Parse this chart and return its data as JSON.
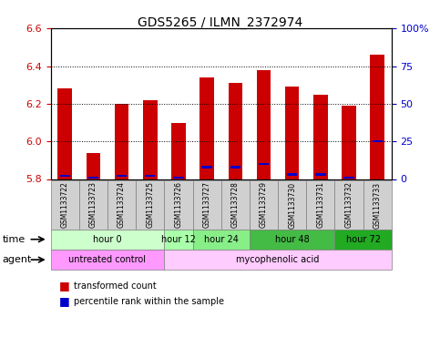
{
  "title": "GDS5265 / ILMN_2372974",
  "samples": [
    "GSM1133722",
    "GSM1133723",
    "GSM1133724",
    "GSM1133725",
    "GSM1133726",
    "GSM1133727",
    "GSM1133728",
    "GSM1133729",
    "GSM1133730",
    "GSM1133731",
    "GSM1133732",
    "GSM1133733"
  ],
  "transformed_count": [
    6.28,
    5.94,
    6.2,
    6.22,
    6.1,
    6.34,
    6.31,
    6.38,
    6.29,
    6.25,
    6.19,
    6.46
  ],
  "percentile_rank": [
    2,
    1,
    2,
    2,
    1,
    8,
    8,
    10,
    3,
    3,
    1,
    25
  ],
  "base_value": 5.8,
  "ylim_left": [
    5.8,
    6.6
  ],
  "ylim_right": [
    0,
    100
  ],
  "yticks_left": [
    5.8,
    6.0,
    6.2,
    6.4,
    6.6
  ],
  "yticks_right": [
    0,
    25,
    50,
    75,
    100
  ],
  "ytick_labels_right": [
    "0",
    "25",
    "50",
    "75",
    "100%"
  ],
  "bar_color": "#cc0000",
  "percentile_color": "#0000cc",
  "background_color": "#ffffff",
  "plot_bg_color": "#ffffff",
  "time_groups": [
    {
      "label": "hour 0",
      "start": 0,
      "end": 3,
      "color": "#ccffcc"
    },
    {
      "label": "hour 12",
      "start": 4,
      "end": 4,
      "color": "#aaffaa"
    },
    {
      "label": "hour 24",
      "start": 5,
      "end": 6,
      "color": "#88ee88"
    },
    {
      "label": "hour 48",
      "start": 7,
      "end": 9,
      "color": "#44bb44"
    },
    {
      "label": "hour 72",
      "start": 10,
      "end": 11,
      "color": "#22aa22"
    }
  ],
  "agent_groups": [
    {
      "label": "untreated control",
      "start": 0,
      "end": 3,
      "color": "#ff99ff"
    },
    {
      "label": "mycophenolic acid",
      "start": 4,
      "end": 11,
      "color": "#ffccff"
    }
  ],
  "legend_items": [
    {
      "label": "transformed count",
      "color": "#cc0000"
    },
    {
      "label": "percentile rank within the sample",
      "color": "#0000cc"
    }
  ],
  "tick_color_left": "#cc0000",
  "tick_color_right": "#0000cc"
}
